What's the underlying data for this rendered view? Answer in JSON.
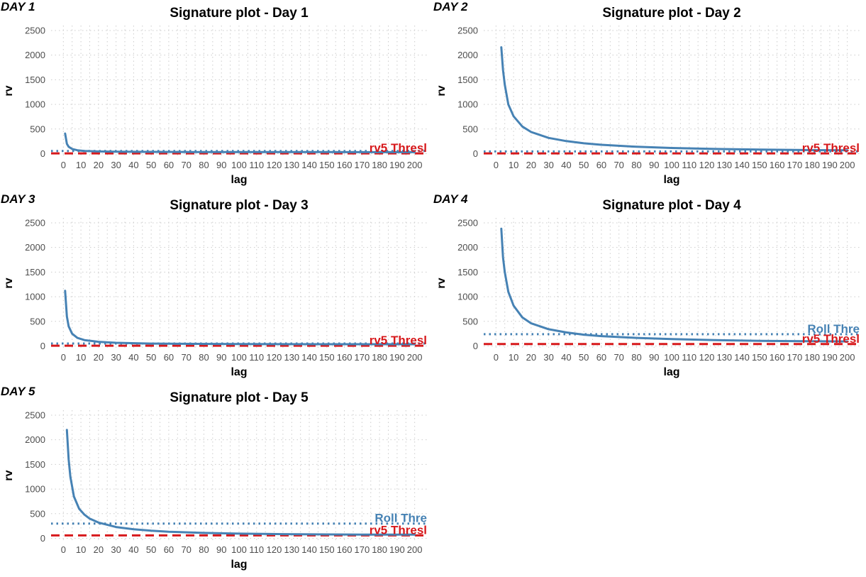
{
  "chart_data": [
    {
      "type": "line",
      "panel_tag": "DAY 1",
      "title": "Signature plot - Day 1",
      "xlabel": "lag",
      "ylabel": "rv",
      "xlim": [
        -7,
        207
      ],
      "ylim": [
        -50,
        2600
      ],
      "x_ticks": [
        0,
        10,
        20,
        30,
        40,
        50,
        60,
        70,
        80,
        90,
        100,
        110,
        120,
        130,
        140,
        150,
        160,
        170,
        180,
        190,
        200
      ],
      "y_ticks": [
        0,
        500,
        1000,
        1500,
        2000,
        2500
      ],
      "grid": true,
      "series": [
        {
          "color": "#4682B4",
          "x": [
            1,
            2,
            3,
            5,
            8,
            12,
            20,
            30,
            50,
            75,
            100,
            150,
            200
          ],
          "y": [
            410,
            200,
            140,
            95,
            70,
            55,
            45,
            40,
            36,
            34,
            33,
            32,
            31
          ]
        }
      ],
      "reference_lines": [
        {
          "kind": "thresh",
          "value": 5,
          "label": "rv5 Thresl",
          "color": "#D7191C"
        },
        {
          "kind": "roll",
          "value": 55,
          "label": "",
          "color": "#4682B4"
        }
      ]
    },
    {
      "type": "line",
      "panel_tag": "DAY 2",
      "title": "Signature plot - Day 2",
      "xlabel": "lag",
      "ylabel": "rv",
      "xlim": [
        -7,
        207
      ],
      "ylim": [
        -50,
        2600
      ],
      "x_ticks": [
        0,
        10,
        20,
        30,
        40,
        50,
        60,
        70,
        80,
        90,
        100,
        110,
        120,
        130,
        140,
        150,
        160,
        170,
        180,
        190,
        200
      ],
      "y_ticks": [
        0,
        500,
        1000,
        1500,
        2000,
        2500
      ],
      "grid": true,
      "series": [
        {
          "color": "#4682B4",
          "x": [
            3,
            4,
            5,
            7,
            10,
            15,
            20,
            30,
            40,
            50,
            60,
            80,
            100,
            125,
            150,
            175,
            200
          ],
          "y": [
            2160,
            1700,
            1400,
            1000,
            760,
            550,
            440,
            320,
            255,
            210,
            180,
            140,
            115,
            95,
            82,
            74,
            68
          ]
        }
      ],
      "reference_lines": [
        {
          "kind": "thresh",
          "value": 5,
          "label": "rv5 Thresl",
          "color": "#D7191C"
        },
        {
          "kind": "roll",
          "value": 45,
          "label": "",
          "color": "#4682B4"
        }
      ]
    },
    {
      "type": "line",
      "panel_tag": "DAY 3",
      "title": "Signature plot - Day 3",
      "xlabel": "lag",
      "ylabel": "rv",
      "xlim": [
        -7,
        207
      ],
      "ylim": [
        -50,
        2600
      ],
      "x_ticks": [
        0,
        10,
        20,
        30,
        40,
        50,
        60,
        70,
        80,
        90,
        100,
        110,
        120,
        130,
        140,
        150,
        160,
        170,
        180,
        190,
        200
      ],
      "y_ticks": [
        0,
        500,
        1000,
        1500,
        2000,
        2500
      ],
      "grid": true,
      "series": [
        {
          "color": "#4682B4",
          "x": [
            1,
            2,
            3,
            5,
            8,
            12,
            20,
            30,
            50,
            75,
            100,
            150,
            200
          ],
          "y": [
            1120,
            600,
            400,
            250,
            165,
            120,
            85,
            65,
            50,
            43,
            40,
            37,
            36
          ]
        }
      ],
      "reference_lines": [
        {
          "kind": "thresh",
          "value": 5,
          "label": "rv5 Thresl",
          "color": "#D7191C"
        },
        {
          "kind": "roll",
          "value": 50,
          "label": "",
          "color": "#4682B4"
        }
      ]
    },
    {
      "type": "line",
      "panel_tag": "DAY 4",
      "title": "Signature plot - Day 4",
      "xlabel": "lag",
      "ylabel": "rv",
      "xlim": [
        -7,
        207
      ],
      "ylim": [
        -50,
        2600
      ],
      "x_ticks": [
        0,
        10,
        20,
        30,
        40,
        50,
        60,
        70,
        80,
        90,
        100,
        110,
        120,
        130,
        140,
        150,
        160,
        170,
        180,
        190,
        200
      ],
      "y_ticks": [
        0,
        500,
        1000,
        1500,
        2000,
        2500
      ],
      "grid": true,
      "series": [
        {
          "color": "#4682B4",
          "x": [
            3,
            4,
            5,
            7,
            10,
            15,
            20,
            30,
            40,
            50,
            60,
            80,
            100,
            125,
            150,
            175,
            200
          ],
          "y": [
            2380,
            1800,
            1500,
            1100,
            820,
            580,
            460,
            340,
            275,
            230,
            200,
            165,
            140,
            120,
            105,
            98,
            92
          ]
        }
      ],
      "reference_lines": [
        {
          "kind": "thresh",
          "value": 40,
          "label": "rv5 Thresl",
          "color": "#D7191C"
        },
        {
          "kind": "roll",
          "value": 240,
          "label": "Roll Thre",
          "color": "#4682B4"
        }
      ]
    },
    {
      "type": "line",
      "panel_tag": "DAY 5",
      "title": "Signature plot - Day 5",
      "xlabel": "lag",
      "ylabel": "rv",
      "xlim": [
        -7,
        207
      ],
      "ylim": [
        -50,
        2600
      ],
      "x_ticks": [
        0,
        10,
        20,
        30,
        40,
        50,
        60,
        70,
        80,
        90,
        100,
        110,
        120,
        130,
        140,
        150,
        160,
        170,
        180,
        190,
        200
      ],
      "y_ticks": [
        0,
        500,
        1000,
        1500,
        2000,
        2500
      ],
      "grid": true,
      "series": [
        {
          "color": "#4682B4",
          "x": [
            2,
            3,
            4,
            6,
            9,
            12,
            15,
            20,
            30,
            40,
            50,
            60,
            80,
            100,
            125,
            150,
            175,
            200
          ],
          "y": [
            2200,
            1600,
            1250,
            850,
            600,
            480,
            400,
            320,
            230,
            185,
            155,
            135,
            110,
            95,
            85,
            80,
            76,
            75
          ]
        }
      ],
      "reference_lines": [
        {
          "kind": "thresh",
          "value": 60,
          "label": "rv5 Thresl",
          "color": "#D7191C"
        },
        {
          "kind": "roll",
          "value": 300,
          "label": "Roll Thre",
          "color": "#4682B4"
        }
      ]
    }
  ]
}
